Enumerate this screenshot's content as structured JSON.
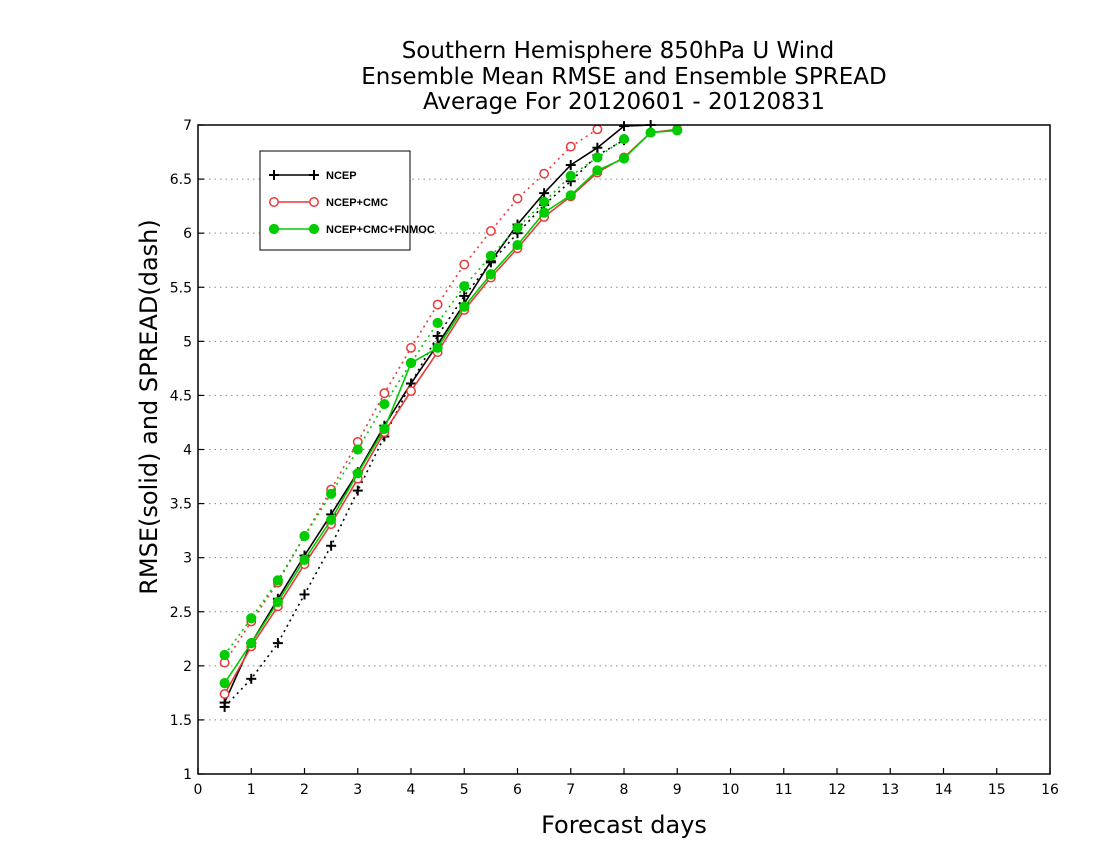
{
  "chart_data": {
    "type": "line",
    "title": [
      "Southern Hemisphere 850hPa U Wind",
      "Ensemble Mean RMSE and Ensemble SPREAD",
      "Average For 20120601 - 20120831"
    ],
    "xlabel": "Forecast days",
    "ylabel": "RMSE(solid) and SPREAD(dash)",
    "xlim": [
      0,
      16
    ],
    "ylim": [
      1,
      7
    ],
    "xticks": [
      0,
      1,
      2,
      3,
      4,
      5,
      6,
      7,
      8,
      9,
      10,
      11,
      12,
      13,
      14,
      15,
      16
    ],
    "yticks": [
      1,
      1.5,
      2,
      2.5,
      3,
      3.5,
      4,
      4.5,
      5,
      5.5,
      6,
      6.5,
      7
    ],
    "ytick_labels": [
      "1",
      "1.5",
      "2",
      "2.5",
      "3",
      "3.5",
      "4",
      "4.5",
      "5",
      "5.5",
      "6",
      "6.5",
      "7"
    ],
    "grid": "horizontal dotted",
    "legend_position": "top-left",
    "series": [
      {
        "name": "NCEP",
        "kind": "rmse",
        "style": "solid",
        "color": "#000000",
        "marker": "plus",
        "x": [
          0.5,
          1,
          1.5,
          2,
          2.5,
          3,
          3.5,
          4,
          4.5,
          5,
          5.5,
          6,
          6.5,
          7,
          7.5,
          8,
          8.5
        ],
        "y": [
          1.66,
          2.21,
          2.62,
          3.02,
          3.4,
          3.79,
          4.22,
          4.61,
          4.97,
          5.35,
          5.74,
          6.08,
          6.37,
          6.63,
          6.79,
          6.99,
          7.0
        ]
      },
      {
        "name": "NCEP",
        "kind": "spread",
        "style": "dotted",
        "color": "#000000",
        "marker": "plus",
        "x": [
          0.5,
          1,
          1.5,
          2,
          2.5,
          3,
          3.5,
          4,
          4.5,
          5,
          5.5,
          6,
          6.5,
          7,
          7.5,
          8
        ],
        "y": [
          1.62,
          1.88,
          2.21,
          2.66,
          3.11,
          3.62,
          4.12,
          4.61,
          5.05,
          5.42,
          5.73,
          6.0,
          6.26,
          6.48,
          6.72,
          6.86
        ]
      },
      {
        "name": "NCEP+CMC",
        "kind": "rmse",
        "style": "solid",
        "color": "#e83a3a",
        "marker": "open-circle",
        "x": [
          0.5,
          1,
          1.5,
          2,
          2.5,
          3,
          3.5,
          4,
          4.5,
          5,
          5.5,
          6,
          6.5,
          7,
          7.5,
          8,
          8.5,
          9
        ],
        "y": [
          1.74,
          2.18,
          2.55,
          2.94,
          3.31,
          3.73,
          4.16,
          4.54,
          4.9,
          5.29,
          5.59,
          5.86,
          6.15,
          6.34,
          6.56,
          6.7,
          6.93,
          6.96
        ]
      },
      {
        "name": "NCEP+CMC",
        "kind": "spread",
        "style": "dotted",
        "color": "#e83a3a",
        "marker": "open-circle",
        "x": [
          0.5,
          1,
          1.5,
          2,
          2.5,
          3,
          3.5,
          4,
          4.5,
          5,
          5.5,
          6,
          6.5,
          7,
          7.5
        ],
        "y": [
          2.03,
          2.41,
          2.77,
          3.2,
          3.63,
          4.07,
          4.52,
          4.94,
          5.34,
          5.71,
          6.02,
          6.32,
          6.55,
          6.8,
          6.96
        ]
      },
      {
        "name": "NCEP+CMC+FNMOC",
        "kind": "rmse",
        "style": "solid",
        "color": "#00cc00",
        "marker": "filled-circle",
        "x": [
          0.5,
          1,
          1.5,
          2,
          2.5,
          3,
          3.5,
          4,
          4.5,
          5,
          5.5,
          6,
          6.5,
          7,
          7.5,
          8,
          8.5,
          9
        ],
        "y": [
          1.84,
          2.21,
          2.59,
          2.98,
          3.35,
          3.78,
          4.19,
          4.8,
          4.94,
          5.32,
          5.62,
          5.89,
          6.19,
          6.35,
          6.58,
          6.69,
          6.93,
          6.95
        ]
      },
      {
        "name": "NCEP+CMC+FNMOC",
        "kind": "spread",
        "style": "dotted",
        "color": "#00cc00",
        "marker": "filled-circle",
        "x": [
          0.5,
          1,
          1.5,
          2,
          2.5,
          3,
          3.5,
          4,
          4.5,
          5,
          5.5,
          6,
          6.5,
          7,
          7.5,
          8
        ],
        "y": [
          2.1,
          2.44,
          2.79,
          3.2,
          3.59,
          4.0,
          4.42,
          4.8,
          5.17,
          5.51,
          5.79,
          6.05,
          6.29,
          6.53,
          6.7,
          6.87
        ]
      }
    ],
    "legend": [
      {
        "label": "NCEP",
        "color": "#000000",
        "marker": "plus"
      },
      {
        "label": "NCEP+CMC",
        "color": "#e83a3a",
        "marker": "open-circle"
      },
      {
        "label": "NCEP+CMC+FNMOC",
        "color": "#00cc00",
        "marker": "filled-circle"
      }
    ]
  }
}
